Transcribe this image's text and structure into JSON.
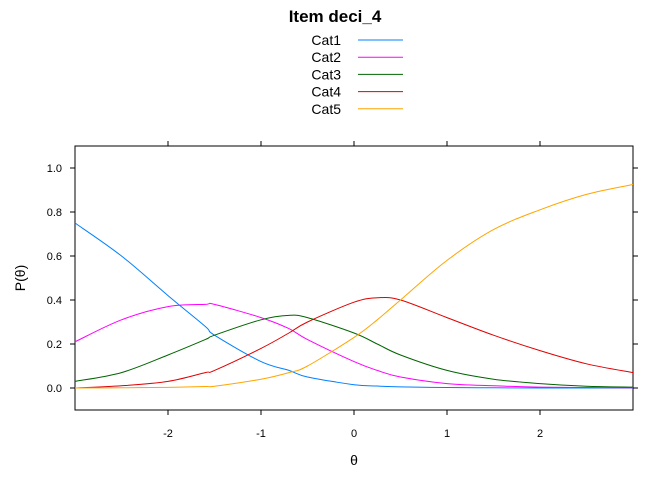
{
  "chart_data": {
    "type": "line",
    "title": "Item deci_4",
    "xlabel": "θ",
    "ylabel": "P(θ)",
    "xlim": [
      -3,
      3
    ],
    "ylim": [
      -0.1,
      1.1
    ],
    "x_ticks": [
      "-2",
      "-1",
      "0",
      "1",
      "2"
    ],
    "y_ticks": [
      "0.0",
      "0.2",
      "0.4",
      "0.6",
      "0.8",
      "1.0"
    ],
    "grid": false,
    "legend_position": "top-center",
    "x": [
      -3,
      -2.5,
      -2,
      -1.6,
      -1.5,
      -1,
      -0.7,
      -0.5,
      0,
      0.25,
      0.5,
      1,
      1.5,
      2,
      2.5,
      3
    ],
    "series": [
      {
        "name": "Cat1",
        "color": "#0080ff",
        "values": [
          0.75,
          0.6,
          0.42,
          0.28,
          0.24,
          0.12,
          0.08,
          0.05,
          0.015,
          0.009,
          0.005,
          0.002,
          0.001,
          0.0,
          0.0,
          0.0
        ]
      },
      {
        "name": "Cat2",
        "color": "#ff00ff",
        "values": [
          0.21,
          0.31,
          0.37,
          0.38,
          0.38,
          0.32,
          0.27,
          0.22,
          0.12,
          0.08,
          0.05,
          0.02,
          0.01,
          0.004,
          0.002,
          0.001
        ]
      },
      {
        "name": "Cat3",
        "color": "#006400",
        "values": [
          0.03,
          0.07,
          0.15,
          0.22,
          0.24,
          0.31,
          0.33,
          0.32,
          0.25,
          0.2,
          0.15,
          0.08,
          0.04,
          0.02,
          0.008,
          0.004
        ]
      },
      {
        "name": "Cat4",
        "color": "#e00000",
        "values": [
          0.0,
          0.01,
          0.03,
          0.07,
          0.08,
          0.18,
          0.25,
          0.3,
          0.39,
          0.41,
          0.4,
          0.32,
          0.24,
          0.17,
          0.11,
          0.07
        ]
      },
      {
        "name": "Cat5",
        "color": "#ffa500",
        "values": [
          0.0,
          0.001,
          0.003,
          0.007,
          0.008,
          0.04,
          0.07,
          0.1,
          0.23,
          0.31,
          0.4,
          0.58,
          0.72,
          0.81,
          0.88,
          0.925
        ]
      }
    ]
  }
}
